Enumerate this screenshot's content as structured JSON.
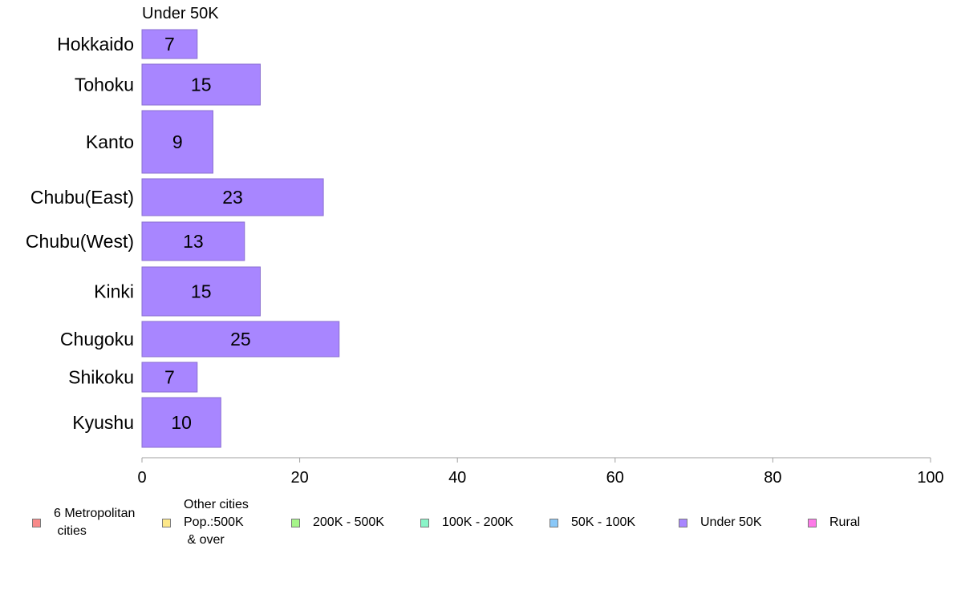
{
  "series_title": "Under 50K",
  "chart_data": {
    "type": "bar",
    "orientation": "horizontal",
    "title": "Under 50K",
    "categories": [
      "Hokkaido",
      "Tohoku",
      "Kanto",
      "Chubu(East)",
      "Chubu(West)",
      "Kinki",
      "Chugoku",
      "Shikoku",
      "Kyushu"
    ],
    "series": [
      {
        "name": "Under 50K",
        "values": [
          7,
          15,
          9,
          23,
          13,
          15,
          25,
          7,
          10
        ],
        "color": "#a886ff"
      }
    ],
    "data_labels": [
      "7",
      "15",
      "9",
      "23",
      "13",
      "15",
      "25",
      "7",
      "10"
    ],
    "xlim": [
      0,
      100
    ],
    "x_ticks": [
      0,
      20,
      40,
      60,
      80,
      100
    ],
    "x_tick_labels": [
      "0",
      "20",
      "40",
      "60",
      "80",
      "100"
    ],
    "xlabel": "",
    "ylabel": "",
    "grid": false,
    "legend_placement": "bottom"
  },
  "legend": [
    {
      "label": "6 Metropolitan\n cities",
      "color": "#f88a8a"
    },
    {
      "label": "Other cities\nPop.:500K\n & over",
      "color": "#fde88a"
    },
    {
      "label": "200K - 500K",
      "color": "#a6f58a"
    },
    {
      "label": "100K - 200K",
      "color": "#8af5c8"
    },
    {
      "label": "50K - 100K",
      "color": "#8ac8f8"
    },
    {
      "label": "Under 50K",
      "color": "#a886ff"
    },
    {
      "label": "Rural",
      "color": "#fd7ae8"
    }
  ],
  "colors": {
    "bar_stroke": "#8a6fd0",
    "axis": "#a0a0a0",
    "text": "#000000"
  }
}
